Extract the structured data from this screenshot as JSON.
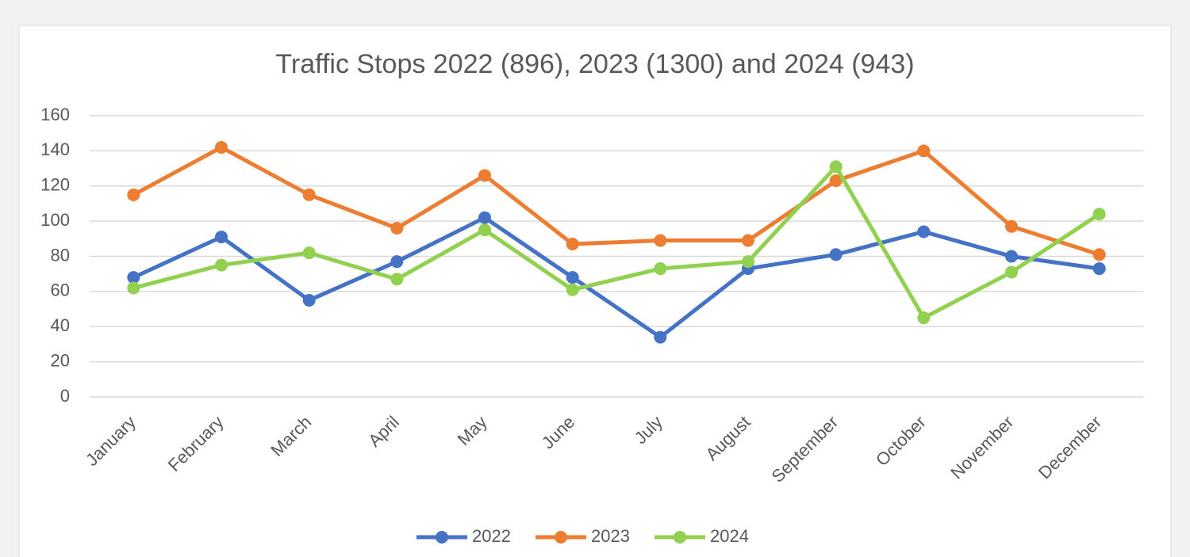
{
  "chart_data": {
    "type": "line",
    "title": "Traffic Stops 2022 (896), 2023 (1300) and 2024 (943)",
    "categories": [
      "January",
      "February",
      "March",
      "April",
      "May",
      "June",
      "July",
      "August",
      "September",
      "October",
      "November",
      "December"
    ],
    "series": [
      {
        "name": "2022",
        "color": "#4472c4",
        "values": [
          68,
          91,
          55,
          77,
          102,
          68,
          34,
          73,
          81,
          94,
          80,
          73
        ]
      },
      {
        "name": "2023",
        "color": "#ed7d31",
        "values": [
          115,
          142,
          115,
          96,
          126,
          87,
          89,
          89,
          123,
          140,
          97,
          81
        ]
      },
      {
        "name": "2024",
        "color": "#92d050",
        "values": [
          62,
          75,
          82,
          67,
          95,
          61,
          73,
          77,
          131,
          45,
          71,
          104
        ]
      }
    ],
    "ylim": [
      0,
      160
    ],
    "yticks": [
      0,
      20,
      40,
      60,
      80,
      100,
      120,
      140,
      160
    ],
    "grid": true,
    "legend": "bottom"
  }
}
